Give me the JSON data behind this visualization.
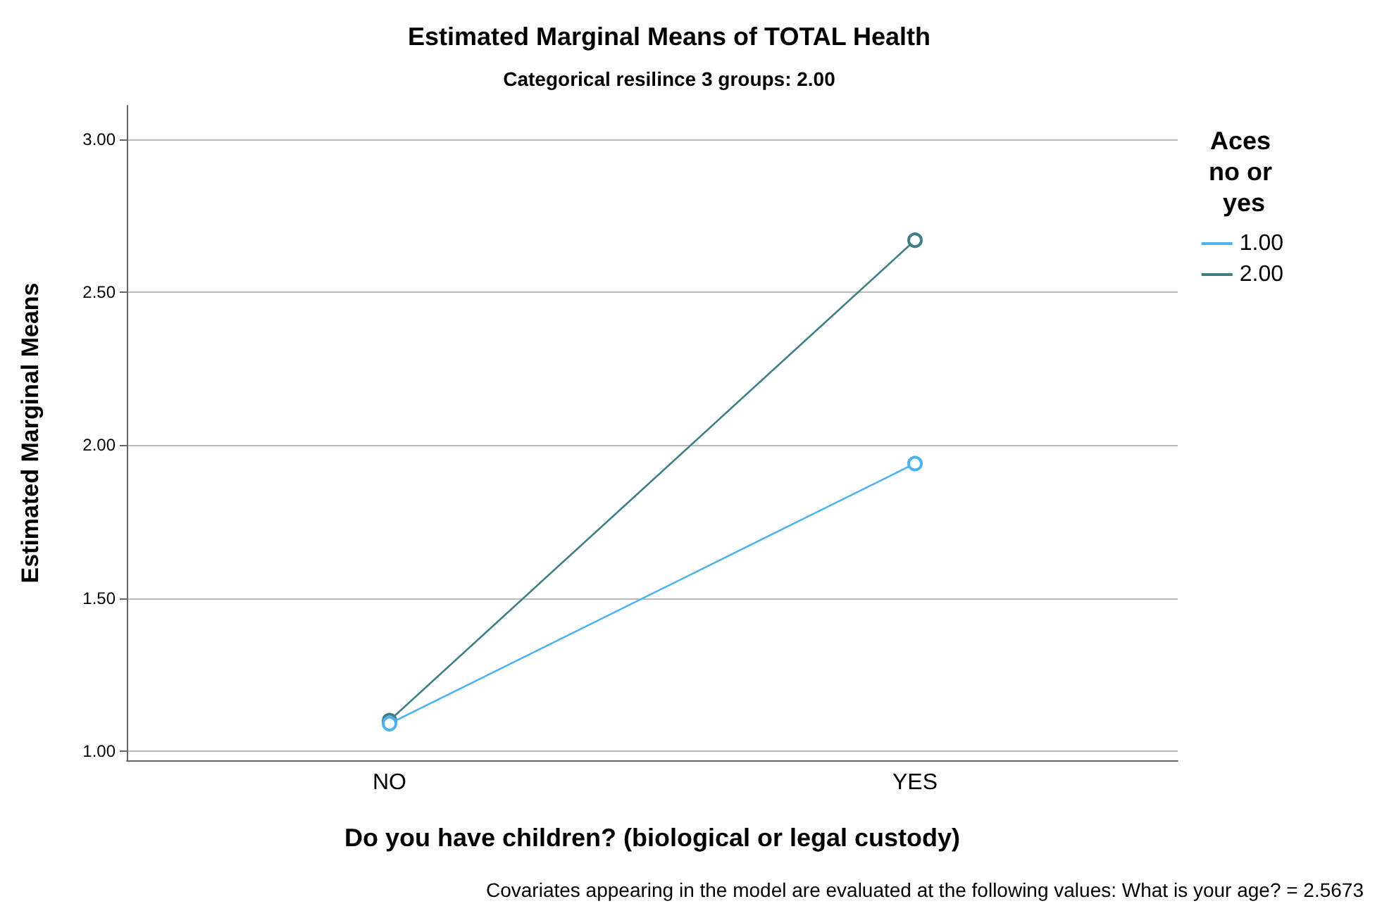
{
  "chart_data": {
    "type": "line",
    "title": "Estimated Marginal Means of TOTAL Health",
    "subtitle": "Categorical resilince 3 groups: 2.00",
    "xlabel": "Do you have children? (biological or legal custody)",
    "ylabel": "Estimated Marginal Means",
    "legend_title": "Aces no or yes",
    "annotations": [
      "Covariates appearing in the model are evaluated at the following values: What is your age? = 2.5673"
    ],
    "categories": [
      "NO",
      "YES"
    ],
    "series": [
      {
        "name": "1.00",
        "color": "#4db3f0",
        "values": [
          1.09,
          1.94
        ]
      },
      {
        "name": "2.00",
        "color": "#3f7f84",
        "values": [
          1.1,
          2.67
        ]
      }
    ],
    "ylim": [
      0.97,
      3.11
    ],
    "yticks": [
      {
        "value": 1,
        "label": "1.00"
      },
      {
        "value": 1.5,
        "label": "1.50"
      },
      {
        "value": 2,
        "label": "2.00"
      },
      {
        "value": 2.5,
        "label": "2.50"
      },
      {
        "value": 3,
        "label": "3.00"
      }
    ],
    "grid": "y",
    "legend": "top right",
    "marker": "circle",
    "line_style": "solid"
  }
}
